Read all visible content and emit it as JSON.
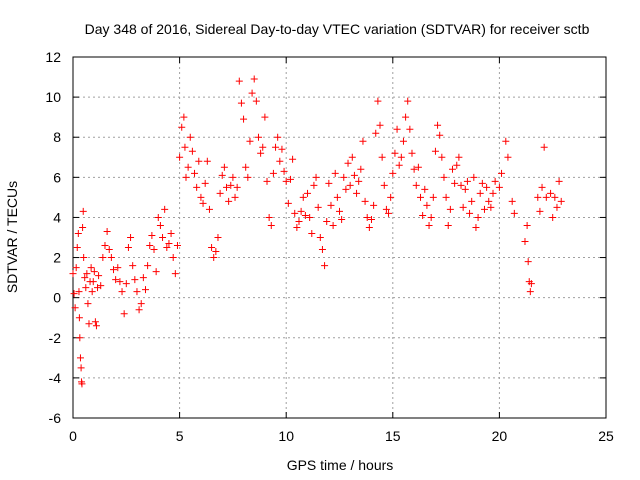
{
  "chart_data": {
    "type": "scatter",
    "title": "Day 348 of 2016, Sidereal Day-to-day VTEC variation (SDTVAR) for receiver sctb",
    "xlabel": "GPS time / hours",
    "ylabel": "SDTVAR / TECUs",
    "xlim": [
      0,
      25
    ],
    "ylim": [
      -6,
      12
    ],
    "xticks": [
      0,
      5,
      10,
      15,
      20,
      25
    ],
    "yticks": [
      -6,
      -4,
      -2,
      0,
      2,
      4,
      6,
      8,
      10,
      12
    ],
    "grid": true,
    "marker": "+",
    "color": "#ff0000",
    "series": [
      {
        "name": "SDTVAR",
        "points": [
          [
            0.0,
            1.2
          ],
          [
            0.05,
            0.2
          ],
          [
            0.1,
            -0.5
          ],
          [
            0.15,
            1.5
          ],
          [
            0.2,
            2.5
          ],
          [
            0.25,
            3.2
          ],
          [
            0.28,
            0.3
          ],
          [
            0.3,
            -1.0
          ],
          [
            0.32,
            -2.0
          ],
          [
            0.35,
            -3.0
          ],
          [
            0.38,
            -3.5
          ],
          [
            0.4,
            -4.2
          ],
          [
            0.42,
            -4.3
          ],
          [
            0.45,
            3.5
          ],
          [
            0.48,
            4.3
          ],
          [
            0.5,
            2.0
          ],
          [
            0.55,
            1.0
          ],
          [
            0.6,
            0.5
          ],
          [
            0.65,
            1.2
          ],
          [
            0.7,
            -0.3
          ],
          [
            0.75,
            -1.3
          ],
          [
            0.8,
            0.8
          ],
          [
            0.85,
            1.5
          ],
          [
            0.9,
            0.3
          ],
          [
            0.95,
            0.8
          ],
          [
            1.0,
            1.3
          ],
          [
            1.05,
            -1.2
          ],
          [
            1.1,
            -1.4
          ],
          [
            1.15,
            0.5
          ],
          [
            1.2,
            1.1
          ],
          [
            1.3,
            0.6
          ],
          [
            1.4,
            2.0
          ],
          [
            1.5,
            2.6
          ],
          [
            1.6,
            3.3
          ],
          [
            1.7,
            2.4
          ],
          [
            1.8,
            2.0
          ],
          [
            1.9,
            1.4
          ],
          [
            2.0,
            0.9
          ],
          [
            2.1,
            1.5
          ],
          [
            2.2,
            0.8
          ],
          [
            2.3,
            0.3
          ],
          [
            2.4,
            -0.8
          ],
          [
            2.5,
            0.7
          ],
          [
            2.6,
            2.5
          ],
          [
            2.7,
            3.0
          ],
          [
            2.8,
            1.6
          ],
          [
            2.9,
            0.9
          ],
          [
            3.0,
            0.3
          ],
          [
            3.1,
            -0.6
          ],
          [
            3.2,
            -0.3
          ],
          [
            3.3,
            1.0
          ],
          [
            3.4,
            0.4
          ],
          [
            3.5,
            1.6
          ],
          [
            3.6,
            2.6
          ],
          [
            3.7,
            3.1
          ],
          [
            3.8,
            2.4
          ],
          [
            3.9,
            1.3
          ],
          [
            4.0,
            4.0
          ],
          [
            4.1,
            3.6
          ],
          [
            4.2,
            3.0
          ],
          [
            4.3,
            4.4
          ],
          [
            4.4,
            2.5
          ],
          [
            4.5,
            2.7
          ],
          [
            4.6,
            3.2
          ],
          [
            4.7,
            2.0
          ],
          [
            4.8,
            1.2
          ],
          [
            4.9,
            2.6
          ],
          [
            5.0,
            7.0
          ],
          [
            5.1,
            8.5
          ],
          [
            5.2,
            9.0
          ],
          [
            5.25,
            7.5
          ],
          [
            5.3,
            6.0
          ],
          [
            5.4,
            6.5
          ],
          [
            5.5,
            8.0
          ],
          [
            5.6,
            7.3
          ],
          [
            5.7,
            6.2
          ],
          [
            5.8,
            5.5
          ],
          [
            5.9,
            6.8
          ],
          [
            6.0,
            5.0
          ],
          [
            6.1,
            4.7
          ],
          [
            6.2,
            5.7
          ],
          [
            6.3,
            6.8
          ],
          [
            6.4,
            4.4
          ],
          [
            6.5,
            2.5
          ],
          [
            6.6,
            2.0
          ],
          [
            6.7,
            2.3
          ],
          [
            6.8,
            3.0
          ],
          [
            6.9,
            5.2
          ],
          [
            7.0,
            6.1
          ],
          [
            7.1,
            6.5
          ],
          [
            7.2,
            5.5
          ],
          [
            7.3,
            4.8
          ],
          [
            7.4,
            5.6
          ],
          [
            7.5,
            6.0
          ],
          [
            7.6,
            5.0
          ],
          [
            7.7,
            5.5
          ],
          [
            7.8,
            10.8
          ],
          [
            7.9,
            9.7
          ],
          [
            8.0,
            8.9
          ],
          [
            8.1,
            6.5
          ],
          [
            8.2,
            6.0
          ],
          [
            8.3,
            7.8
          ],
          [
            8.4,
            10.2
          ],
          [
            8.5,
            10.9
          ],
          [
            8.6,
            9.8
          ],
          [
            8.7,
            8.0
          ],
          [
            8.8,
            7.2
          ],
          [
            8.9,
            7.5
          ],
          [
            9.0,
            9.0
          ],
          [
            9.1,
            5.8
          ],
          [
            9.2,
            4.0
          ],
          [
            9.3,
            3.6
          ],
          [
            9.4,
            6.2
          ],
          [
            9.5,
            7.5
          ],
          [
            9.6,
            8.0
          ],
          [
            9.7,
            6.8
          ],
          [
            9.8,
            7.4
          ],
          [
            9.9,
            6.3
          ],
          [
            10.0,
            5.8
          ],
          [
            10.1,
            4.7
          ],
          [
            10.2,
            5.9
          ],
          [
            10.3,
            6.9
          ],
          [
            10.4,
            4.2
          ],
          [
            10.5,
            3.5
          ],
          [
            10.6,
            3.8
          ],
          [
            10.7,
            4.3
          ],
          [
            10.8,
            5.0
          ],
          [
            10.9,
            4.1
          ],
          [
            11.0,
            5.2
          ],
          [
            11.1,
            4.0
          ],
          [
            11.2,
            3.2
          ],
          [
            11.3,
            5.6
          ],
          [
            11.4,
            6.0
          ],
          [
            11.5,
            4.5
          ],
          [
            11.6,
            3.0
          ],
          [
            11.7,
            2.4
          ],
          [
            11.8,
            1.6
          ],
          [
            11.9,
            3.8
          ],
          [
            12.0,
            5.7
          ],
          [
            12.1,
            4.6
          ],
          [
            12.2,
            3.6
          ],
          [
            12.3,
            6.2
          ],
          [
            12.4,
            5.0
          ],
          [
            12.5,
            4.3
          ],
          [
            12.6,
            3.9
          ],
          [
            12.7,
            6.0
          ],
          [
            12.8,
            5.4
          ],
          [
            12.9,
            6.7
          ],
          [
            13.0,
            5.6
          ],
          [
            13.1,
            7.0
          ],
          [
            13.2,
            6.1
          ],
          [
            13.3,
            5.2
          ],
          [
            13.4,
            5.8
          ],
          [
            13.5,
            6.4
          ],
          [
            13.6,
            7.8
          ],
          [
            13.7,
            4.8
          ],
          [
            13.8,
            4.0
          ],
          [
            13.9,
            3.5
          ],
          [
            14.0,
            3.9
          ],
          [
            14.1,
            4.6
          ],
          [
            14.2,
            8.2
          ],
          [
            14.3,
            9.8
          ],
          [
            14.4,
            8.6
          ],
          [
            14.5,
            7.0
          ],
          [
            14.6,
            5.6
          ],
          [
            14.7,
            4.4
          ],
          [
            14.8,
            4.2
          ],
          [
            14.9,
            5.0
          ],
          [
            15.0,
            6.2
          ],
          [
            15.1,
            7.2
          ],
          [
            15.2,
            8.4
          ],
          [
            15.3,
            6.6
          ],
          [
            15.4,
            7.0
          ],
          [
            15.5,
            7.8
          ],
          [
            15.6,
            9.0
          ],
          [
            15.7,
            9.8
          ],
          [
            15.8,
            8.4
          ],
          [
            15.9,
            7.2
          ],
          [
            16.0,
            6.4
          ],
          [
            16.1,
            5.6
          ],
          [
            16.2,
            6.5
          ],
          [
            16.3,
            5.0
          ],
          [
            16.4,
            4.1
          ],
          [
            16.5,
            5.4
          ],
          [
            16.6,
            4.6
          ],
          [
            16.7,
            3.6
          ],
          [
            16.8,
            4.0
          ],
          [
            16.9,
            5.0
          ],
          [
            17.0,
            7.3
          ],
          [
            17.1,
            8.6
          ],
          [
            17.2,
            8.1
          ],
          [
            17.3,
            7.0
          ],
          [
            17.4,
            6.0
          ],
          [
            17.5,
            5.0
          ],
          [
            17.6,
            3.6
          ],
          [
            17.7,
            4.4
          ],
          [
            17.8,
            6.4
          ],
          [
            17.9,
            5.7
          ],
          [
            18.0,
            6.6
          ],
          [
            18.1,
            7.0
          ],
          [
            18.2,
            5.6
          ],
          [
            18.3,
            4.5
          ],
          [
            18.4,
            5.4
          ],
          [
            18.5,
            5.8
          ],
          [
            18.6,
            4.2
          ],
          [
            18.7,
            4.8
          ],
          [
            18.8,
            6.0
          ],
          [
            18.9,
            3.5
          ],
          [
            19.0,
            4.0
          ],
          [
            19.1,
            5.2
          ],
          [
            19.2,
            5.7
          ],
          [
            19.3,
            4.4
          ],
          [
            19.4,
            5.5
          ],
          [
            19.5,
            4.8
          ],
          [
            19.6,
            4.5
          ],
          [
            19.7,
            5.2
          ],
          [
            19.8,
            5.8
          ],
          [
            20.0,
            5.5
          ],
          [
            20.1,
            6.2
          ],
          [
            20.3,
            7.8
          ],
          [
            20.4,
            7.0
          ],
          [
            20.6,
            4.8
          ],
          [
            20.7,
            4.2
          ],
          [
            21.2,
            2.8
          ],
          [
            21.3,
            3.6
          ],
          [
            21.35,
            1.8
          ],
          [
            21.4,
            0.8
          ],
          [
            21.45,
            0.3
          ],
          [
            21.5,
            0.7
          ],
          [
            21.8,
            5.0
          ],
          [
            21.9,
            4.3
          ],
          [
            22.0,
            5.5
          ],
          [
            22.1,
            7.5
          ],
          [
            22.2,
            5.0
          ],
          [
            22.4,
            5.2
          ],
          [
            22.5,
            4.0
          ],
          [
            22.6,
            5.0
          ],
          [
            22.7,
            4.5
          ],
          [
            22.8,
            5.8
          ],
          [
            22.9,
            4.8
          ]
        ]
      }
    ]
  }
}
